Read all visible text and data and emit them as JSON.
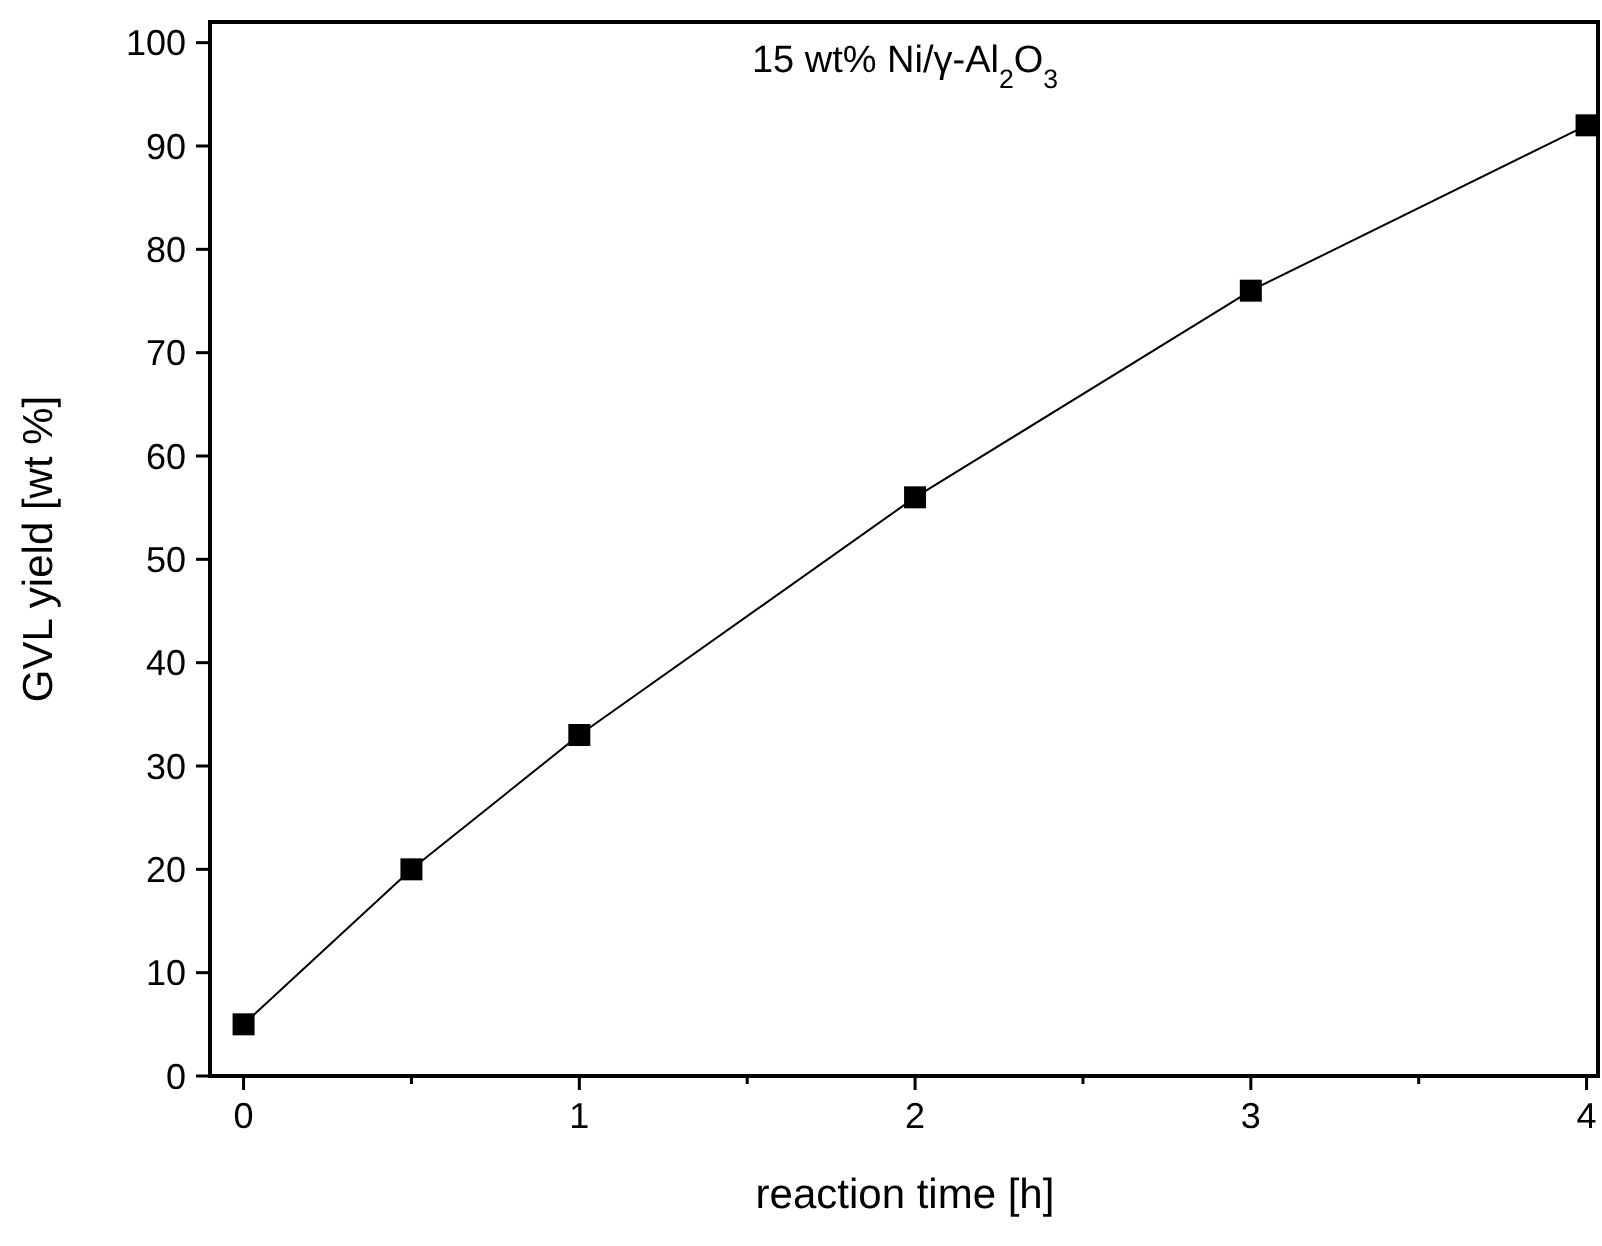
{
  "chart_data": {
    "type": "line",
    "title": "15 wt% Ni/γ-Al$_{2}$O$_{3}$",
    "xlabel": "reaction time [h]",
    "ylabel": "GVL yield [wt %]",
    "x": [
      0,
      0.5,
      1,
      2,
      3,
      4
    ],
    "series": [
      {
        "color": "#000000",
        "values": [
          5,
          20,
          33,
          56,
          76,
          92
        ]
      }
    ],
    "xlim": [
      -0.1,
      4.04
    ],
    "xticks": [
      0,
      {
        "value": 0.5,
        "label": null
      },
      1,
      {
        "value": 1.5,
        "label": null
      },
      2,
      {
        "value": 2.5,
        "label": null
      },
      3,
      {
        "value": 3.5,
        "label": null
      },
      4
    ],
    "ylim": [
      0,
      102
    ],
    "yticks": [
      0,
      10,
      20,
      30,
      40,
      50,
      60,
      70,
      80,
      90,
      100
    ],
    "marker": "square",
    "line_style": "solid",
    "grid": false
  }
}
